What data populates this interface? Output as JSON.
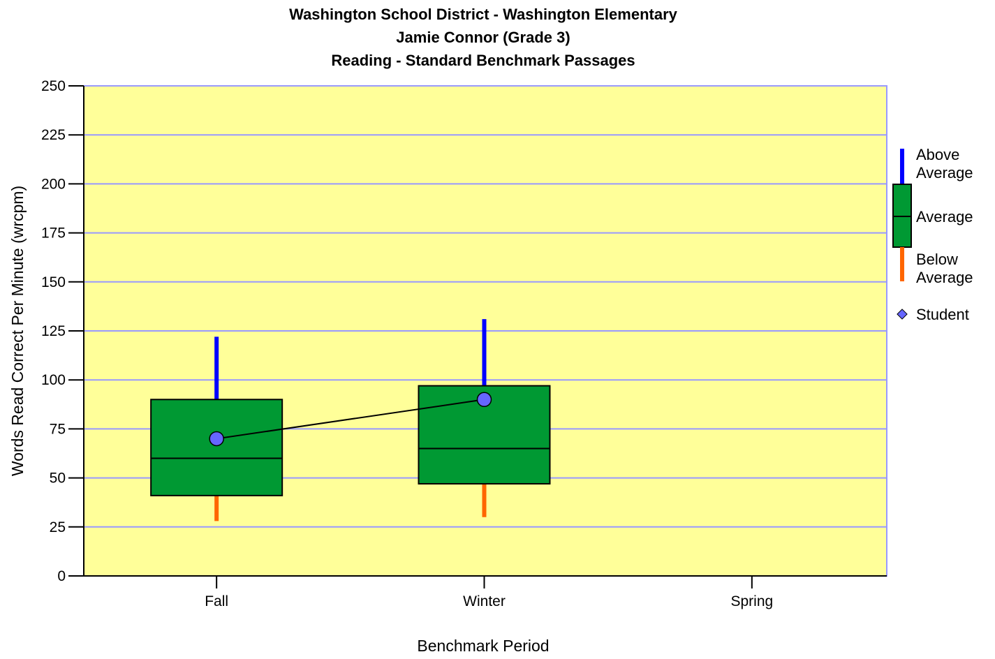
{
  "chart_data": {
    "type": "boxplot",
    "title": [
      "Washington School District - Washington Elementary",
      "Jamie Connor (Grade 3)",
      "Reading - Standard Benchmark Passages"
    ],
    "xlabel": "Benchmark Period",
    "ylabel": "Words Read Correct Per Minute (wrcpm)",
    "ylim": [
      0,
      250
    ],
    "yticks": [
      0,
      25,
      50,
      75,
      100,
      125,
      150,
      175,
      200,
      225,
      250
    ],
    "categories": [
      "Fall",
      "Winter",
      "Spring"
    ],
    "grid": true,
    "legend_position": "right",
    "boxes": [
      {
        "category": "Fall",
        "whisker_low": 28,
        "q1": 41,
        "median": 60,
        "q3": 90,
        "whisker_high": 122
      },
      {
        "category": "Winter",
        "whisker_low": 30,
        "q1": 47,
        "median": 65,
        "q3": 97,
        "whisker_high": 131
      }
    ],
    "student": {
      "name": "Student",
      "points": [
        {
          "category": "Fall",
          "value": 70
        },
        {
          "category": "Winter",
          "value": 90
        }
      ]
    },
    "legend": [
      {
        "label": "Above Average",
        "lines": [
          "Above",
          "Average"
        ],
        "color": "#0000ff"
      },
      {
        "label": "Average",
        "lines": [
          "Average"
        ],
        "color": "#009933"
      },
      {
        "label": "Below Average",
        "lines": [
          "Below",
          "Average"
        ],
        "color": "#ff6600"
      },
      {
        "label": "Student",
        "lines": [
          "Student"
        ],
        "color": "#6666ff"
      }
    ],
    "colors": {
      "plot_background": "#ffff99",
      "grid": "#9999ff",
      "box_fill": "#009933",
      "above": "#0000ff",
      "below": "#ff6600",
      "student": "#6666ff",
      "student_line": "#000000"
    }
  }
}
